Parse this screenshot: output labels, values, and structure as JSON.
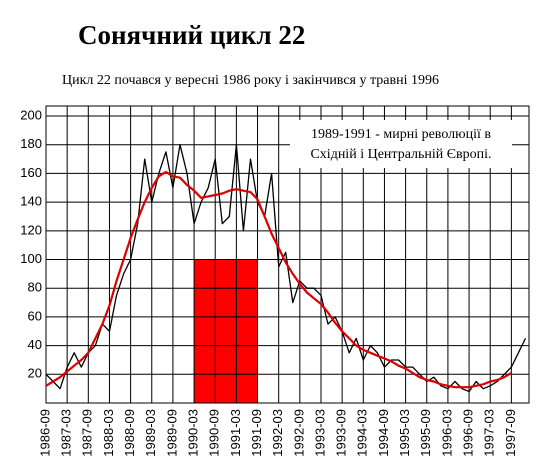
{
  "chart_data": {
    "type": "line",
    "title": "Сонячний цикл 22",
    "subtitle": "Цикл 22 почався у вересні 1986 року і закінчився у травні 1996",
    "annotation": [
      "1989-1991 - мирні революції в",
      "Східній і Центральній Європі."
    ],
    "x": [
      "1986-09",
      "1986-11",
      "1987-01",
      "1987-03",
      "1987-05",
      "1987-07",
      "1987-09",
      "1987-11",
      "1988-01",
      "1988-03",
      "1988-05",
      "1988-07",
      "1988-09",
      "1988-11",
      "1989-01",
      "1989-03",
      "1989-05",
      "1989-07",
      "1989-09",
      "1989-11",
      "1990-01",
      "1990-03",
      "1990-05",
      "1990-07",
      "1990-09",
      "1990-11",
      "1991-01",
      "1991-03",
      "1991-05",
      "1991-07",
      "1991-09",
      "1991-11",
      "1992-01",
      "1992-03",
      "1992-05",
      "1992-07",
      "1992-09",
      "1992-11",
      "1993-01",
      "1993-03",
      "1993-05",
      "1993-07",
      "1993-09",
      "1993-11",
      "1994-01",
      "1994-03",
      "1994-05",
      "1994-07",
      "1994-09",
      "1994-11",
      "1995-01",
      "1995-03",
      "1995-05",
      "1995-07",
      "1995-09",
      "1995-11",
      "1996-01",
      "1996-03",
      "1996-05",
      "1996-07",
      "1996-09",
      "1996-11",
      "1997-01",
      "1997-03",
      "1997-05",
      "1997-07",
      "1997-09",
      "1997-11",
      "1998-01"
    ],
    "series": [
      {
        "color": "#000000",
        "values": [
          20,
          15,
          10,
          25,
          35,
          25,
          35,
          40,
          55,
          50,
          75,
          90,
          100,
          125,
          170,
          140,
          160,
          175,
          150,
          180,
          160,
          125,
          140,
          150,
          170,
          125,
          130,
          180,
          120,
          170,
          140,
          130,
          160,
          95,
          105,
          70,
          85,
          80,
          80,
          75,
          55,
          60,
          50,
          35,
          45,
          30,
          40,
          35,
          25,
          30,
          30,
          25,
          25,
          20,
          15,
          18,
          12,
          10,
          15,
          10,
          8,
          15,
          10,
          12,
          15,
          20,
          25,
          35,
          45
        ]
      },
      {
        "color": "#dd0000",
        "values": [
          12,
          15,
          18,
          22,
          26,
          30,
          35,
          45,
          55,
          68,
          85,
          100,
          115,
          128,
          140,
          150,
          158,
          161,
          158,
          157,
          152,
          148,
          143,
          144,
          145,
          146,
          148,
          149,
          148,
          147,
          142,
          130,
          118,
          108,
          98,
          90,
          83,
          77,
          73,
          69,
          63,
          56,
          50,
          45,
          40,
          37,
          35,
          33,
          31,
          29,
          26,
          24,
          21,
          18,
          16,
          15,
          13,
          12,
          11,
          11,
          11,
          12,
          13,
          15,
          16,
          18,
          21,
          null,
          null
        ]
      }
    ],
    "highlight": {
      "x": [
        "1990-03",
        "1991-09"
      ],
      "value": 100,
      "color": "#ff0000"
    },
    "xlim": [
      "1986-09",
      "1998-02"
    ],
    "xticks": [
      "1986-09",
      "1987-03",
      "1987-09",
      "1988-03",
      "1988-09",
      "1989-03",
      "1989-09",
      "1990-03",
      "1990-09",
      "1991-03",
      "1991-09",
      "1992-03",
      "1992-09",
      "1993-03",
      "1993-09",
      "1994-03",
      "1994-09",
      "1995-03",
      "1995-09",
      "1996-03",
      "1996-09",
      "1997-03",
      "1997-09"
    ],
    "ylim": [
      0,
      207
    ],
    "yticks": [
      20,
      40,
      60,
      80,
      100,
      120,
      140,
      160,
      180,
      200
    ],
    "grid": true
  }
}
